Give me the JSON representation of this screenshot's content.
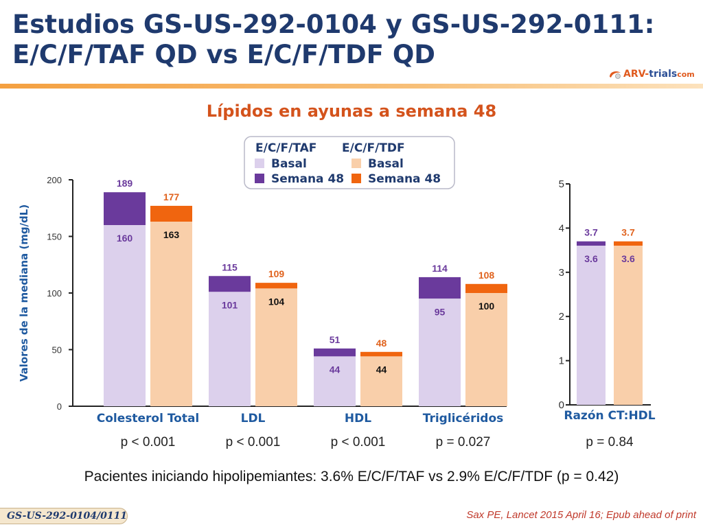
{
  "slide": {
    "title_line1": "Estudios GS-US-292-0104 y GS-US-292-0111:",
    "title_line2": "E/C/F/TAF QD vs E/C/F/TDF QD",
    "logo_text_a": "ARV-",
    "logo_text_b": "trials",
    "logo_text_c": "com",
    "footer_tag": "GS-US-292-0104/0111",
    "reference": "Sax PE, Lancet 2015 April 16; Epub ahead of print",
    "note": "Pacientes iniciando hipolipemiantes: 3.6% E/C/F/TAF vs 2.9% E/C/F/TDF (p = 0.42)"
  },
  "colors": {
    "taf_basal": "#dcd0ec",
    "taf_w48": "#6a3a9c",
    "tdf_basal": "#f9cfaa",
    "tdf_w48": "#f0650f",
    "label_purple": "#6a3a9c",
    "label_dark": "#111111",
    "label_orange": "#e0621d",
    "axis_label": "#1f5aa0"
  },
  "legend": {
    "group_taf": "E/C/F/TAF",
    "group_tdf": "E/C/F/TDF",
    "basal": "Basal",
    "week48": "Semana 48"
  },
  "chart_data": [
    {
      "type": "bar",
      "title": "Lípidos en ayunas a semana 48",
      "ylabel": "Valores de la mediana (mg/dL)",
      "ylim": [
        0,
        200
      ],
      "yticks": [
        0,
        50,
        100,
        150,
        200
      ],
      "categories": [
        "Colesterol Total",
        "LDL",
        "HDL",
        "Triglicéridos"
      ],
      "series": [
        {
          "name": "E/C/F/TAF Basal",
          "values": [
            160,
            101,
            44,
            95
          ]
        },
        {
          "name": "E/C/F/TAF Semana 48",
          "values": [
            189,
            115,
            51,
            114
          ]
        },
        {
          "name": "E/C/F/TDF Basal",
          "values": [
            163,
            104,
            44,
            100
          ]
        },
        {
          "name": "E/C/F/TDF Semana 48",
          "values": [
            177,
            109,
            48,
            108
          ]
        }
      ],
      "pvalues": [
        "p < 0.001",
        "p < 0.001",
        "p < 0.001",
        "p = 0.027"
      ],
      "legend": "top-center",
      "grid": false
    },
    {
      "type": "bar",
      "ylim": [
        0,
        5
      ],
      "yticks": [
        0,
        1,
        2,
        3,
        4,
        5
      ],
      "categories": [
        "Razón CT:HDL"
      ],
      "series": [
        {
          "name": "E/C/F/TAF Basal",
          "values": [
            3.6
          ]
        },
        {
          "name": "E/C/F/TAF Semana 48",
          "values": [
            3.7
          ]
        },
        {
          "name": "E/C/F/TDF Basal",
          "values": [
            3.6
          ]
        },
        {
          "name": "E/C/F/TDF Semana 48",
          "values": [
            3.7
          ]
        }
      ],
      "pvalues": [
        "p = 0.84"
      ],
      "grid": false
    }
  ]
}
